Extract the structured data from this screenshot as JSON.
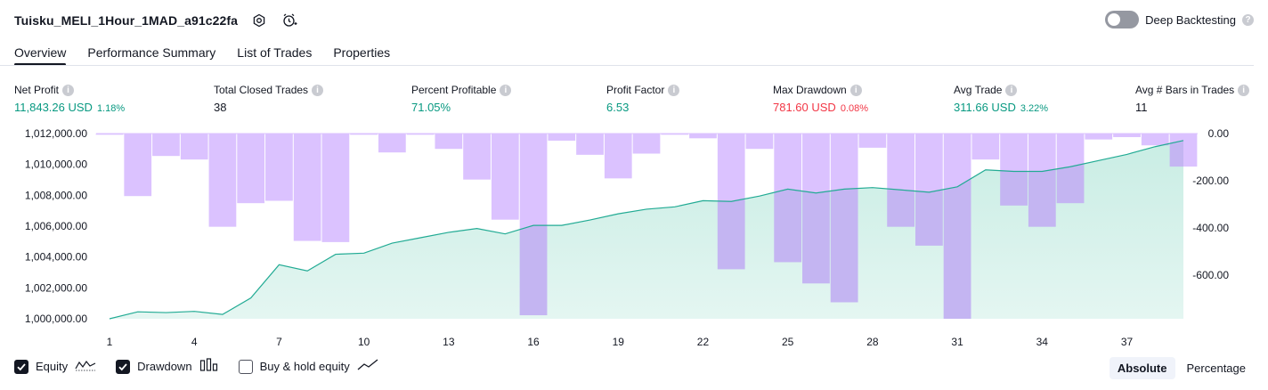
{
  "header": {
    "title": "Tuisku_MELI_1Hour_1MAD_a91c22fa",
    "deep_backtesting_label": "Deep Backtesting",
    "deep_backtesting_on": false
  },
  "tabs": [
    {
      "label": "Overview",
      "active": true
    },
    {
      "label": "Performance Summary",
      "active": false
    },
    {
      "label": "List of Trades",
      "active": false
    },
    {
      "label": "Properties",
      "active": false
    }
  ],
  "metrics": {
    "net_profit": {
      "label": "Net Profit",
      "value": "11,843.26 USD",
      "pct": "1.18%"
    },
    "total_closed_trades": {
      "label": "Total Closed Trades",
      "value": "38"
    },
    "percent_profitable": {
      "label": "Percent Profitable",
      "value": "71.05%"
    },
    "profit_factor": {
      "label": "Profit Factor",
      "value": "6.53"
    },
    "max_drawdown": {
      "label": "Max Drawdown",
      "value": "781.60 USD",
      "pct": "0.08%"
    },
    "avg_trade": {
      "label": "Avg Trade",
      "value": "311.66 USD",
      "pct": "3.22%"
    },
    "avg_bars": {
      "label": "Avg # Bars in Trades",
      "value": "11"
    }
  },
  "colors": {
    "positive": "#089981",
    "negative": "#f23645",
    "equity_line": "#22ab94",
    "equity_fill": "#c9ede4",
    "drawdown_bar": "#dbc2ff",
    "drawdown_overlap": "#c4b5f2"
  },
  "chart_data": {
    "type": "area+bar",
    "x": [
      1,
      2,
      3,
      4,
      5,
      6,
      7,
      8,
      9,
      10,
      11,
      12,
      13,
      14,
      15,
      16,
      17,
      18,
      19,
      20,
      21,
      22,
      23,
      24,
      25,
      26,
      27,
      28,
      29,
      30,
      31,
      32,
      33,
      34,
      35,
      36,
      37,
      38,
      39
    ],
    "x_tick_labels": [
      "1",
      "4",
      "7",
      "10",
      "13",
      "16",
      "19",
      "22",
      "25",
      "28",
      "31",
      "34",
      "37"
    ],
    "series": [
      {
        "axis": "left",
        "values": [
          1000000,
          1000450,
          1000400,
          1000480,
          1000280,
          1001350,
          1003500,
          1003100,
          1004180,
          1004250,
          1004900,
          1005250,
          1005600,
          1005850,
          1005500,
          1006050,
          1006050,
          1006400,
          1006800,
          1007100,
          1007250,
          1007650,
          1007600,
          1007950,
          1008400,
          1008150,
          1008400,
          1008500,
          1008350,
          1008200,
          1008550,
          1009650,
          1009550,
          1009550,
          1009850,
          1010250,
          1010650,
          1011150,
          1011550
        ]
      },
      {
        "axis": "right",
        "values": [
          -5,
          -265,
          -95,
          -110,
          -395,
          -295,
          -285,
          -455,
          -460,
          -5,
          -80,
          -5,
          -65,
          -195,
          -365,
          -770,
          -30,
          -90,
          -190,
          -85,
          -5,
          -20,
          -575,
          -65,
          -545,
          -635,
          -715,
          -60,
          -395,
          -475,
          -785,
          -110,
          -305,
          -395,
          -295,
          -25,
          -15,
          -50,
          -140
        ]
      }
    ],
    "y_left": {
      "ticks": [
        1000000,
        1002000,
        1004000,
        1006000,
        1008000,
        1010000,
        1012000
      ],
      "tick_labels": [
        "1,000,000.00",
        "1,002,000.00",
        "1,004,000.00",
        "1,006,000.00",
        "1,008,000.00",
        "1,010,000.00",
        "1,012,000.00"
      ],
      "range": [
        1000000,
        1012000
      ]
    },
    "y_right": {
      "ticks": [
        0,
        -200,
        -400,
        -600
      ],
      "tick_labels": [
        "0.00",
        "-200.00",
        "-400.00",
        "-600.00"
      ],
      "range": [
        -785,
        0
      ]
    },
    "grid": false
  },
  "legend": [
    {
      "label": "Equity",
      "checked": true,
      "icon": "equity-line-icon"
    },
    {
      "label": "Drawdown",
      "checked": true,
      "icon": "drawdown-bars-icon"
    },
    {
      "label": "Buy & hold equity",
      "checked": false,
      "icon": "buy-hold-line-icon"
    }
  ],
  "modes": {
    "absolute": "Absolute",
    "percentage": "Percentage",
    "active": "absolute"
  }
}
